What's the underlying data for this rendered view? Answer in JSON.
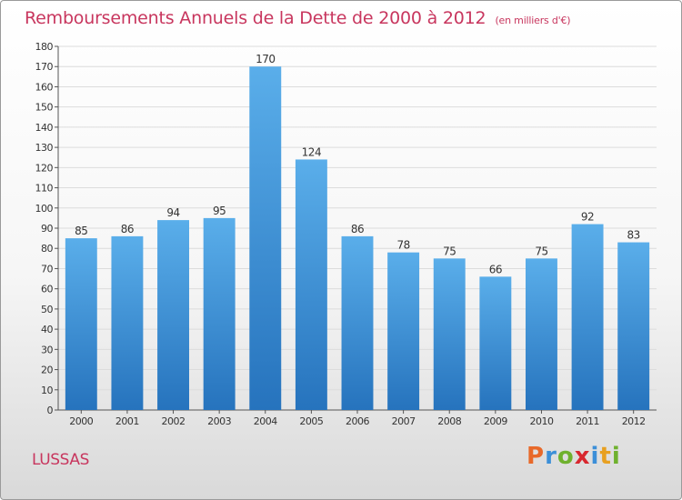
{
  "title": "Remboursements Annuels de la Dette de 2000 à 2012",
  "unit": "(en milliers d'€)",
  "commune": "LUSSAS",
  "logo": {
    "letters": [
      "P",
      "r",
      "o",
      "x",
      "i",
      "t",
      "i"
    ],
    "colors": [
      "#e8692a",
      "#3c8fd8",
      "#6fb12e",
      "#d8282f",
      "#3c8fd8",
      "#e8a020",
      "#6fb12e"
    ]
  },
  "colors": {
    "bar": "#3a90d8",
    "bar_light": "#5aaeea",
    "bar_dark": "#2673bd",
    "title": "#c8365e"
  },
  "chart_data": {
    "type": "bar",
    "categories": [
      "2000",
      "2001",
      "2002",
      "2003",
      "2004",
      "2005",
      "2006",
      "2007",
      "2008",
      "2009",
      "2010",
      "2011",
      "2012"
    ],
    "values": [
      85,
      86,
      94,
      95,
      170,
      124,
      86,
      78,
      75,
      66,
      75,
      92,
      83
    ],
    "ylim": [
      0,
      180
    ],
    "yticks": [
      0,
      10,
      20,
      30,
      40,
      50,
      60,
      70,
      80,
      90,
      100,
      110,
      120,
      130,
      140,
      150,
      160,
      170,
      180
    ],
    "grid": true,
    "legend": "none"
  }
}
